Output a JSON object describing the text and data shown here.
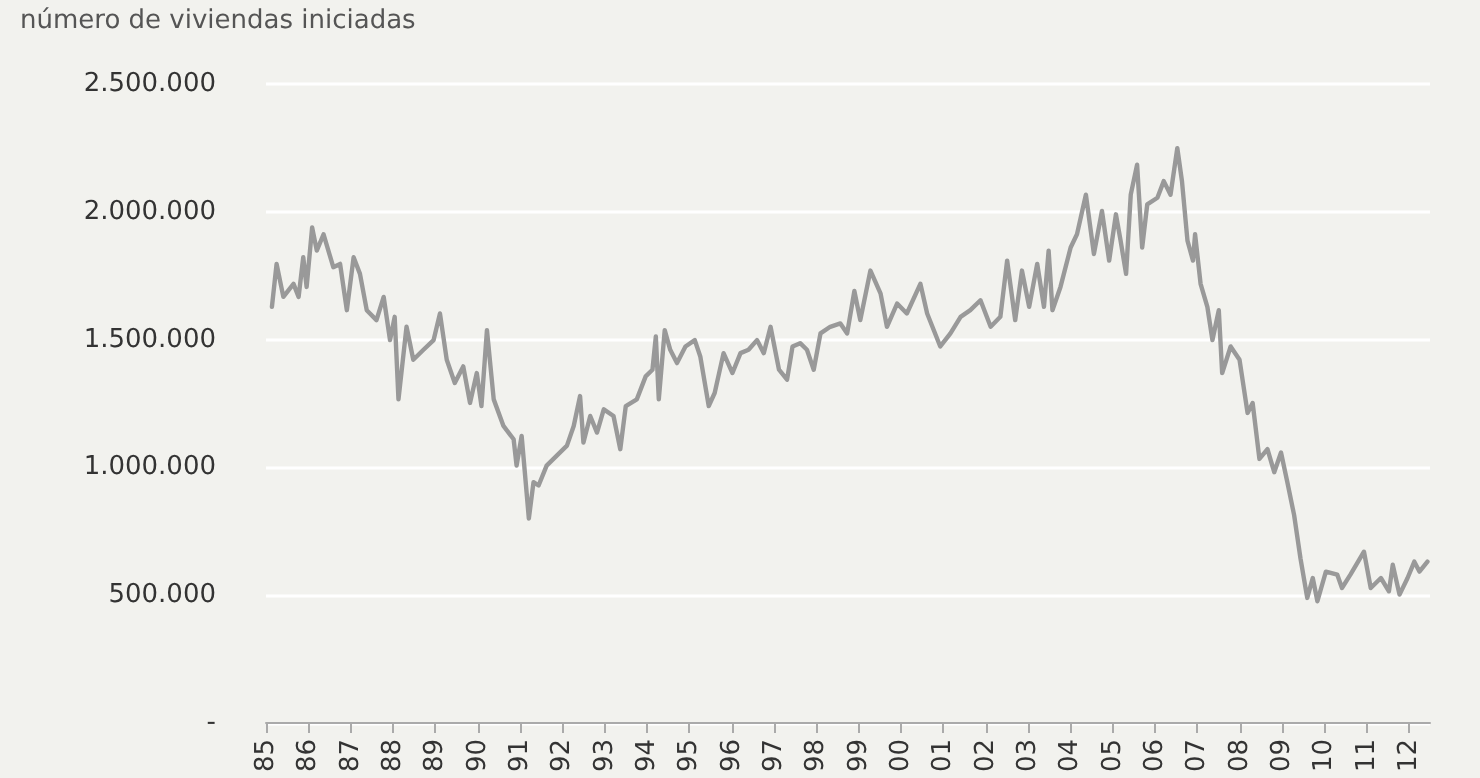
{
  "chart_data": {
    "type": "line",
    "ylabel": "número de viviendas iniciadas",
    "xlim": [
      1985,
      2012.5
    ],
    "xticks": [
      {
        "value": 1985,
        "label": "85"
      },
      {
        "value": 1986,
        "label": "86"
      },
      {
        "value": 1987,
        "label": "87"
      },
      {
        "value": 1988,
        "label": "88"
      },
      {
        "value": 1989,
        "label": "89"
      },
      {
        "value": 1990,
        "label": "90"
      },
      {
        "value": 1991,
        "label": "91"
      },
      {
        "value": 1992,
        "label": "92"
      },
      {
        "value": 1993,
        "label": "93"
      },
      {
        "value": 1994,
        "label": "94"
      },
      {
        "value": 1995,
        "label": "95"
      },
      {
        "value": 1996,
        "label": "96"
      },
      {
        "value": 1997,
        "label": "97"
      },
      {
        "value": 1998,
        "label": "98"
      },
      {
        "value": 1999,
        "label": "99"
      },
      {
        "value": 2000,
        "label": "00"
      },
      {
        "value": 2001,
        "label": "01"
      },
      {
        "value": 2002,
        "label": "02"
      },
      {
        "value": 2003,
        "label": "03"
      },
      {
        "value": 2004,
        "label": "04"
      },
      {
        "value": 2005,
        "label": "05"
      },
      {
        "value": 2006,
        "label": "06"
      },
      {
        "value": 2007,
        "label": "07"
      },
      {
        "value": 2008,
        "label": "08"
      },
      {
        "value": 2009,
        "label": "09"
      },
      {
        "value": 2010,
        "label": "10"
      },
      {
        "value": 2011,
        "label": "11"
      },
      {
        "value": 2012,
        "label": "12"
      }
    ],
    "ylim": [
      0,
      2500000
    ],
    "yticks": [
      {
        "value": 0,
        "label": "-"
      },
      {
        "value": 500000,
        "label": "500.000"
      },
      {
        "value": 1000000,
        "label": "1.000.000"
      },
      {
        "value": 1500000,
        "label": "1.500.000"
      },
      {
        "value": 2000000,
        "label": "2.000.000"
      },
      {
        "value": 2500000,
        "label": "2.500.000"
      }
    ],
    "grid": "y",
    "marker": "none",
    "line_style": "solid",
    "series": [
      {
        "color": "#999999",
        "x": [
          1985.14,
          1985.25,
          1985.41,
          1985.65,
          1985.77,
          1985.88,
          1985.96,
          1986.09,
          1986.2,
          1986.36,
          1986.59,
          1986.75,
          1986.91,
          1987.07,
          1987.22,
          1987.38,
          1987.61,
          1987.78,
          1987.93,
          1988.04,
          1988.13,
          1988.32,
          1988.48,
          1988.72,
          1988.96,
          1989.11,
          1989.27,
          1989.46,
          1989.66,
          1989.82,
          1989.98,
          1990.09,
          1990.22,
          1990.38,
          1990.61,
          1990.85,
          1990.92,
          1991.04,
          1991.21,
          1991.32,
          1991.44,
          1991.63,
          1991.87,
          1992.11,
          1992.27,
          1992.42,
          1992.5,
          1992.66,
          1992.82,
          1992.98,
          1993.21,
          1993.37,
          1993.5,
          1993.76,
          1993.97,
          1994.13,
          1994.21,
          1994.28,
          1994.42,
          1994.55,
          1994.71,
          1994.91,
          1995.13,
          1995.26,
          1995.46,
          1995.6,
          1995.81,
          1996.02,
          1996.21,
          1996.4,
          1996.6,
          1996.76,
          1996.92,
          1997.12,
          1997.31,
          1997.44,
          1997.62,
          1997.78,
          1997.94,
          1998.1,
          1998.33,
          1998.57,
          1998.73,
          1998.9,
          1999.04,
          1999.28,
          1999.52,
          1999.67,
          1999.91,
          2000.14,
          2000.46,
          2000.62,
          2000.93,
          2001.17,
          2001.41,
          2001.64,
          2001.88,
          2002.12,
          2002.35,
          2002.51,
          2002.7,
          2002.86,
          2003.03,
          2003.22,
          2003.38,
          2003.49,
          2003.58,
          2003.77,
          2004.01,
          2004.16,
          2004.37,
          2004.56,
          2004.75,
          2004.92,
          2005.08,
          2005.19,
          2005.32,
          2005.43,
          2005.58,
          2005.7,
          2005.82,
          2006.06,
          2006.21,
          2006.37,
          2006.53,
          2006.64,
          2006.77,
          2006.9,
          2006.95,
          2007.08,
          2007.24,
          2007.36,
          2007.51,
          2007.59,
          2007.79,
          2008.0,
          2008.19,
          2008.31,
          2008.47,
          2008.66,
          2008.82,
          2008.98,
          2009.13,
          2009.29,
          2009.44,
          2009.6,
          2009.73,
          2009.84,
          2010.04,
          2010.31,
          2010.42,
          2010.62,
          2010.94,
          2011.1,
          2011.34,
          2011.53,
          2011.62,
          2011.78,
          2011.97,
          2012.13,
          2012.25,
          2012.44
        ],
        "values": [
          1628000,
          1796000,
          1667000,
          1718000,
          1667000,
          1822000,
          1706000,
          1939000,
          1848000,
          1912000,
          1783000,
          1796000,
          1615000,
          1822000,
          1757000,
          1615000,
          1576000,
          1667000,
          1498000,
          1589000,
          1266000,
          1550000,
          1421000,
          1460000,
          1498000,
          1602000,
          1421000,
          1330000,
          1395000,
          1252000,
          1369000,
          1240000,
          1537000,
          1266000,
          1162000,
          1110000,
          1007000,
          1123000,
          800000,
          942000,
          929000,
          1007000,
          1046000,
          1085000,
          1162000,
          1279000,
          1097000,
          1201000,
          1136000,
          1227000,
          1201000,
          1071000,
          1240000,
          1266000,
          1356000,
          1382000,
          1512000,
          1266000,
          1537000,
          1460000,
          1408000,
          1473000,
          1498000,
          1434000,
          1240000,
          1291000,
          1447000,
          1369000,
          1447000,
          1460000,
          1498000,
          1447000,
          1550000,
          1382000,
          1343000,
          1473000,
          1486000,
          1460000,
          1382000,
          1524000,
          1550000,
          1563000,
          1524000,
          1690000,
          1576000,
          1770000,
          1680000,
          1550000,
          1641000,
          1602000,
          1718000,
          1602000,
          1473000,
          1524000,
          1589000,
          1615000,
          1654000,
          1550000,
          1589000,
          1809000,
          1576000,
          1770000,
          1628000,
          1796000,
          1628000,
          1848000,
          1615000,
          1706000,
          1860000,
          1912000,
          2067000,
          1835000,
          2003000,
          1809000,
          1990000,
          1887000,
          1757000,
          2067000,
          2184000,
          1860000,
          2029000,
          2055000,
          2120000,
          2067000,
          2249000,
          2120000,
          1887000,
          1809000,
          1912000,
          1718000,
          1628000,
          1498000,
          1615000,
          1369000,
          1473000,
          1421000,
          1213000,
          1252000,
          1033000,
          1071000,
          981000,
          1058000,
          942000,
          813000,
          644000,
          489000,
          567000,
          476000,
          592000,
          580000,
          528000,
          580000,
          670000,
          528000,
          567000,
          515000,
          619000,
          502000,
          567000,
          631000,
          592000,
          631000
        ]
      }
    ]
  }
}
